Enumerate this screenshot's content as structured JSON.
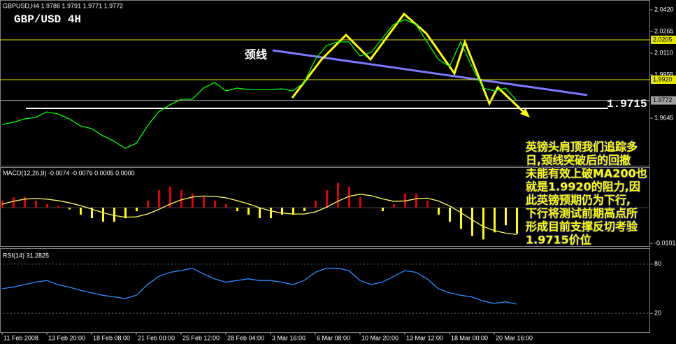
{
  "chart_data": [
    {
      "type": "line",
      "title": "GBPUSD,H4  1.9786 1.9791 1.9771 1.9772",
      "annotations": {
        "label": "GBP/USD 4H",
        "neckline": "颈线",
        "comment": [
          "英镑头肩顶我们追踪多",
          "日,颈线突破后的回撤",
          "未能有效上破MA200也",
          "就是1.9920的阻力,因",
          "此英镑预期仍为下行,",
          "下行将测试前期高点所",
          "形成目前支撑反切考验",
          "1.9715价位"
        ]
      },
      "color": "#00ff00",
      "values": [
        1.96,
        1.9615,
        1.964,
        1.965,
        1.969,
        1.9675,
        1.964,
        1.959,
        1.957,
        1.952,
        1.948,
        1.943,
        1.9465,
        1.959,
        1.969,
        1.974,
        1.978,
        1.978,
        1.986,
        1.99,
        1.984,
        1.986,
        1.985,
        1.985,
        1.985,
        1.9855,
        1.984,
        1.99,
        2.0065,
        2.0165,
        2.019,
        2.019,
        2.009,
        2.0115,
        2.0215,
        2.0315,
        2.035,
        2.0315,
        2.019,
        2.0065,
        2.0015,
        2.019,
        2.0015,
        1.986,
        1.984,
        1.986,
        1.9772
      ],
      "ylim": [
        1.93,
        2.048
      ],
      "yticks": [
        {
          "value": 2.042,
          "label": "2.0420"
        },
        2.0265,
        {
          "value": 2.011,
          "label": "2.0110"
        },
        1.9955,
        1.9645
      ],
      "hlines": [
        {
          "value": 2.0205,
          "color": "#e6e600"
        },
        {
          "value": 1.992,
          "label": "1.9920",
          "color": "#e6e600"
        },
        {
          "value": 1.9772,
          "color": "#a0a0a0"
        }
      ],
      "support": {
        "value": 1.9715,
        "color": "#ffffff"
      }
    },
    {
      "type": "bar",
      "title": "MACD(12,26,9) -0.0074 -0.0076 0.0005 0.0000",
      "up_color": "#e00000",
      "down_color": "#ffff00",
      "signal_color": "#ffff60",
      "values": [
        0.002,
        0.003,
        0.003,
        0.002,
        0.001,
        0.0005,
        -0.0005,
        -0.002,
        -0.003,
        -0.004,
        -0.004,
        -0.003,
        -0.001,
        0.002,
        0.005,
        0.006,
        0.005,
        0.004,
        0.003,
        0.002,
        0.001,
        -0.001,
        -0.002,
        -0.003,
        -0.003,
        -0.002,
        -0.002,
        -0.001,
        0.002,
        0.005,
        0.007,
        0.006,
        0.003,
        0.0,
        -0.001,
        0.001,
        0.004,
        0.004,
        0.002,
        -0.002,
        -0.004,
        -0.006,
        -0.008,
        -0.009,
        -0.007,
        -0.005,
        -0.0074
      ],
      "signal": [
        0.001,
        0.0018,
        0.0024,
        0.0026,
        0.0024,
        0.002,
        0.0014,
        0.0006,
        -0.0004,
        -0.0014,
        -0.0022,
        -0.0027,
        -0.0026,
        -0.0018,
        -0.0005,
        0.001,
        0.0022,
        0.003,
        0.0033,
        0.0032,
        0.0028,
        0.002,
        0.0011,
        0.0,
        -0.0009,
        -0.0015,
        -0.0018,
        -0.0018,
        -0.0012,
        0.0001,
        0.0018,
        0.0032,
        0.0038,
        0.0034,
        0.0025,
        0.0018,
        0.0019,
        0.0025,
        0.0027,
        0.0019,
        0.0005,
        -0.0014,
        -0.0034,
        -0.0053,
        -0.0065,
        -0.0072,
        -0.0076
      ],
      "ylim": [
        -0.0109,
        0.0113
      ],
      "yticks": [
        -0.0101
      ]
    },
    {
      "type": "line",
      "title": "RSI(14) 31.2825",
      "color": "#2a8cff",
      "values": [
        50,
        52,
        55,
        58,
        60,
        55,
        52,
        48,
        45,
        42,
        40,
        38,
        42,
        55,
        65,
        70,
        72,
        75,
        68,
        62,
        58,
        60,
        62,
        60,
        60,
        58,
        55,
        60,
        70,
        75,
        75,
        72,
        60,
        55,
        58,
        65,
        72,
        70,
        62,
        50,
        45,
        42,
        40,
        35,
        32,
        34,
        31.28
      ],
      "ylim": [
        -2.9,
        98.5
      ],
      "yticks": [
        20,
        80
      ],
      "categories": [
        "11 Feb 2008",
        null,
        null,
        null,
        "13 Feb 20:00",
        null,
        null,
        null,
        "18 Feb 08:00",
        null,
        null,
        null,
        "21 Feb 00:00",
        null,
        null,
        null,
        "25 Feb 12:00",
        null,
        null,
        null,
        "28 Feb 04:00",
        null,
        null,
        null,
        "3 Mar 16:00",
        null,
        null,
        null,
        "6 Mar 08:00",
        null,
        null,
        null,
        "10 Mar 20:00",
        null,
        null,
        null,
        "13 Mar 12:00",
        null,
        null,
        null,
        "18 Mar 00:00",
        null,
        null,
        null,
        "20 Mar 16:00",
        null,
        null
      ]
    }
  ]
}
